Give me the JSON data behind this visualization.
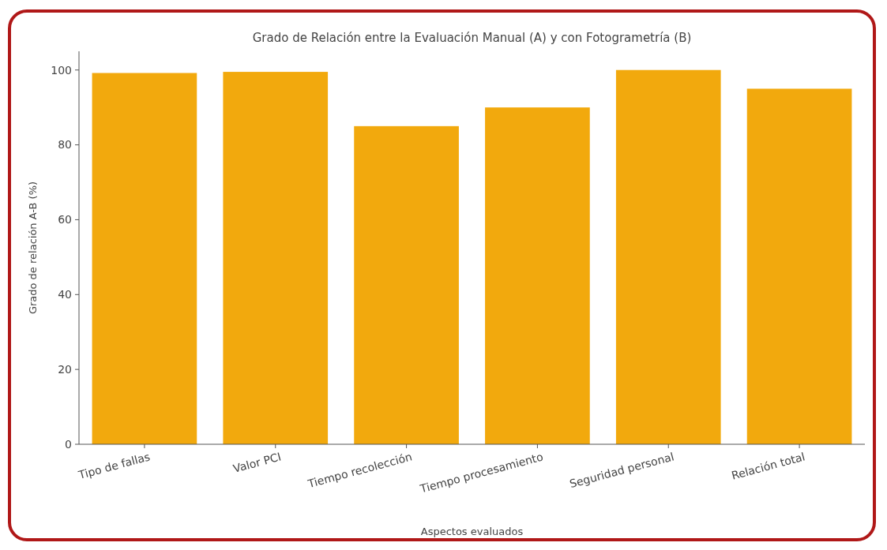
{
  "chart_data": {
    "type": "bar",
    "title": "Grado de Relación entre la Evaluación Manual (A) y con Fotogrametría (B)",
    "xlabel": "Aspectos evaluados",
    "ylabel": "Grado de relación A-B (%)",
    "categories": [
      "Tipo de fallas",
      "Valor PCI",
      "Tiempo recolección",
      "Tiempo procesamiento",
      "Seguridad personal",
      "Relación total"
    ],
    "values": [
      99.2,
      99.5,
      85,
      90,
      100,
      95
    ],
    "color": "#f2a90d",
    "ylim": [
      0,
      105
    ],
    "yticks": [
      0,
      20,
      40,
      60,
      80,
      100
    ],
    "grid": false
  }
}
